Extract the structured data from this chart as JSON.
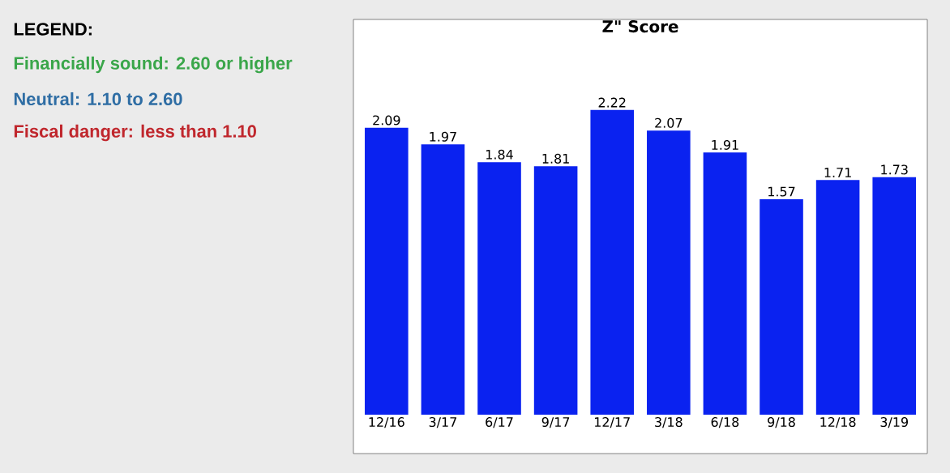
{
  "chart_data": {
    "type": "bar",
    "title": "Z\" Score",
    "categories": [
      "12/16",
      "3/17",
      "6/17",
      "9/17",
      "12/17",
      "3/18",
      "6/18",
      "9/18",
      "12/18",
      "3/19"
    ],
    "values": [
      2.09,
      1.97,
      1.84,
      1.81,
      2.22,
      2.07,
      1.91,
      1.57,
      1.71,
      1.73
    ],
    "color": "#0a22f0",
    "ylim": [
      0,
      2.88
    ],
    "data_labels": true,
    "annotations": [
      "LEGEND:",
      "Financially sound:  2.60 or higher",
      "Neutral:  1.10 to 2.60",
      "Fiscal danger: less than 1.10"
    ]
  }
}
